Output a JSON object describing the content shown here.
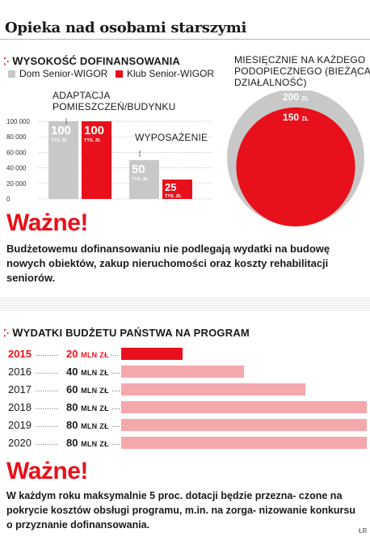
{
  "page": {
    "title": "Opieka nad osobami starszymi",
    "credit": "ŁR"
  },
  "colors": {
    "red": "#e8101a",
    "gray": "#c8c8c8",
    "light_red": "#f4a8ac",
    "dark": "#1a1a1a"
  },
  "section1": {
    "heading_first": "W",
    "heading_rest": "YSOKOŚĆ DOFINANSOWANIA",
    "legend": [
      {
        "label": "Dom Senior-WIGOR",
        "color": "#c8c8c8"
      },
      {
        "label": "Klub Senior-WIGOR",
        "color": "#e8101a"
      }
    ],
    "annotation_1_line1": "ADAPTACJA",
    "annotation_1_line2": "POMIESZCZEŃ/BUDYNKU",
    "annotation_2": "WYPOSAŻENIE",
    "annotation_3_line1": "MIESIĘCZNIE NA KAŻDEGO",
    "annotation_3_line2": "PODOPIECZNEGO (BIEŻĄCA",
    "annotation_3_line3": "DZIAŁALNOŚĆ)"
  },
  "chart_data": [
    {
      "type": "bar",
      "categories": [
        "ADAPTACJA POMIESZCZEŃ/BUDYNKU",
        "WYPOSAŻENIE"
      ],
      "series": [
        {
          "name": "Dom Senior-WIGOR",
          "values": [
            100000,
            50000
          ],
          "labels": [
            "100",
            "50"
          ],
          "unit": "TYS. ZŁ"
        },
        {
          "name": "Klub Senior-WIGOR",
          "values": [
            100000,
            25000
          ],
          "labels": [
            "100",
            "25"
          ],
          "unit": "TYS. ZŁ"
        }
      ],
      "yticks": [
        "100 000",
        "80 000",
        "60 000",
        "40 000",
        "20 000",
        "0"
      ],
      "ylim": [
        0,
        100000
      ]
    },
    {
      "type": "area",
      "title": "MIESIĘCZNIE NA KAŻDEGO PODOPIECZNEGO (BIEŻĄCA DZIAŁALNOŚĆ)",
      "series": [
        {
          "name": "Dom Senior-WIGOR",
          "value": 200,
          "label": "200",
          "unit": "ZŁ"
        },
        {
          "name": "Klub Senior-WIGOR",
          "value": 150,
          "label": "150",
          "unit": "ZŁ"
        }
      ]
    },
    {
      "type": "bar",
      "title": "WYDATKI BUDŻETU PAŃSTWA NA PROGRAM",
      "categories": [
        "2015",
        "2016",
        "2017",
        "2018",
        "2019",
        "2020"
      ],
      "values": [
        20,
        40,
        60,
        80,
        80,
        80
      ],
      "value_labels": [
        "20",
        "40",
        "60",
        "80",
        "80",
        "80"
      ],
      "unit": "MLN ZŁ",
      "xlim": [
        0,
        80
      ]
    }
  ],
  "important1": {
    "title": "Ważne!",
    "text": "Budżetowemu dofinansowaniu nie podlegają wydatki na budowę nowych obiektów, zakup nieruchomości oraz koszty rehabilitacji seniorów."
  },
  "section2": {
    "heading_first": "W",
    "heading_rest": "YDATKI BUDŻETU PAŃSTWA NA PROGRAM",
    "unit": "MLN ZŁ"
  },
  "important2": {
    "title": "Ważne!",
    "text": "W każdym roku maksymalnie 5 proc. dotacji będzie przezna- czone na pokrycie kosztów obsługi programu, m.in. na zorga- nizowanie konkursu o przyznanie dofinansowania."
  }
}
